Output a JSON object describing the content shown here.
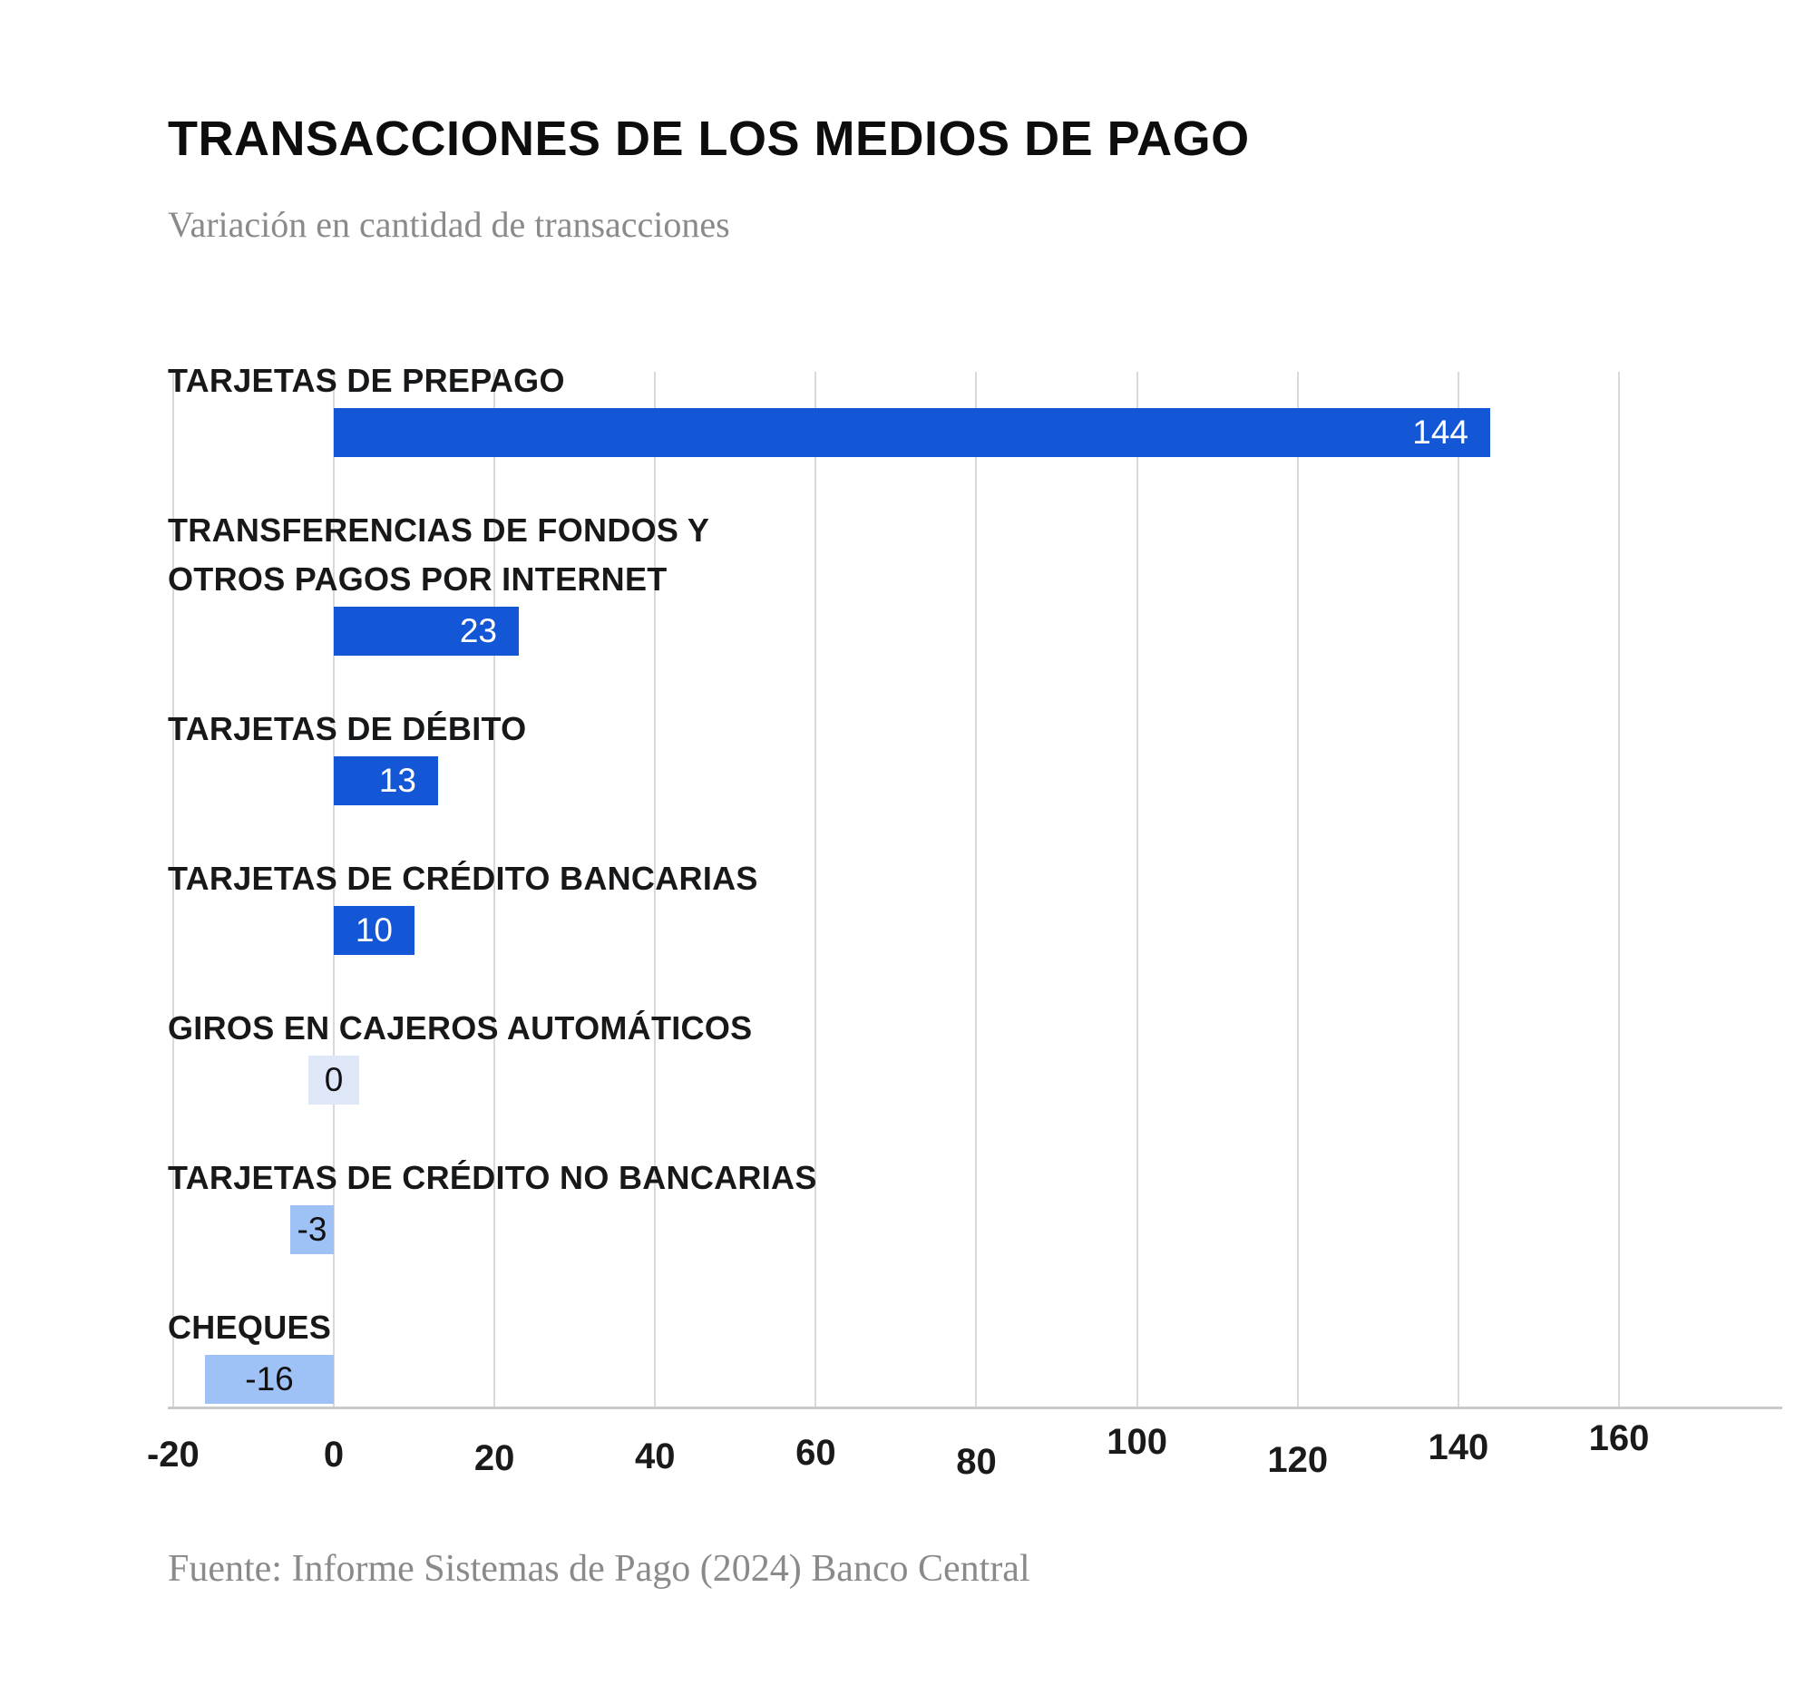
{
  "page": {
    "title": "TRANSACCIONES DE LOS MEDIOS DE PAGO",
    "subtitle": "Variación en cantidad de transacciones",
    "source": "Fuente: Informe Sistemas de Pago (2024) Banco Central"
  },
  "chart_data": {
    "type": "bar",
    "orientation": "horizontal",
    "title": "TRANSACCIONES DE LOS MEDIOS DE PAGO",
    "subtitle": "Variación en cantidad de transacciones",
    "source": "Fuente: Informe Sistemas de Pago (2024) Banco Central",
    "categories": [
      "TARJETAS DE PREPAGO",
      "TRANSFERENCIAS DE FONDOS Y OTROS PAGOS POR INTERNET",
      "TARJETAS DE DÉBITO",
      "TARJETAS DE CRÉDITO BANCARIAS",
      "GIROS EN CAJEROS AUTOMÁTICOS",
      "TARJETAS DE CRÉDITO NO BANCARIAS",
      "CHEQUES"
    ],
    "values": [
      144,
      23,
      13,
      10,
      0,
      -3,
      -16
    ],
    "bars": [
      {
        "label_lines": [
          "TARJETAS DE PREPAGO"
        ],
        "value": 144,
        "value_label": "144"
      },
      {
        "label_lines": [
          "TRANSFERENCIAS DE FONDOS Y",
          "OTROS PAGOS POR INTERNET"
        ],
        "value": 23,
        "value_label": "23"
      },
      {
        "label_lines": [
          "TARJETAS DE DÉBITO"
        ],
        "value": 13,
        "value_label": "13"
      },
      {
        "label_lines": [
          "TARJETAS DE CRÉDITO BANCARIAS"
        ],
        "value": 10,
        "value_label": "10"
      },
      {
        "label_lines": [
          "GIROS EN CAJEROS AUTOMÁTICOS"
        ],
        "value": 0,
        "value_label": "0"
      },
      {
        "label_lines": [
          "TARJETAS DE CRÉDITO NO BANCARIAS"
        ],
        "value": -3,
        "value_label": "-3"
      },
      {
        "label_lines": [
          "CHEQUES"
        ],
        "value": -16,
        "value_label": "-16"
      }
    ],
    "x_axis": {
      "min": -20,
      "max": 160,
      "ticks": [
        -20,
        0,
        20,
        40,
        60,
        80,
        100,
        120,
        140,
        160
      ],
      "tick_labels": [
        "-20",
        "0",
        "20",
        "40",
        "60",
        "80",
        "100",
        "120",
        "140",
        "160"
      ]
    },
    "xlabel": "",
    "ylabel": "",
    "grid": true,
    "legend": false,
    "colors": {
      "positive_bar": "#1457d6",
      "negative_bar": "#9fc2f6",
      "zero_bar": "#dde7f8",
      "grid_line": "#d9d9d9",
      "axis_line": "#c9c9c9",
      "value_on_dark": "#ffffff",
      "value_on_light": "#111111",
      "title": "#0d0d0d",
      "label": "#17181a",
      "muted": "#8a8a8a"
    }
  }
}
